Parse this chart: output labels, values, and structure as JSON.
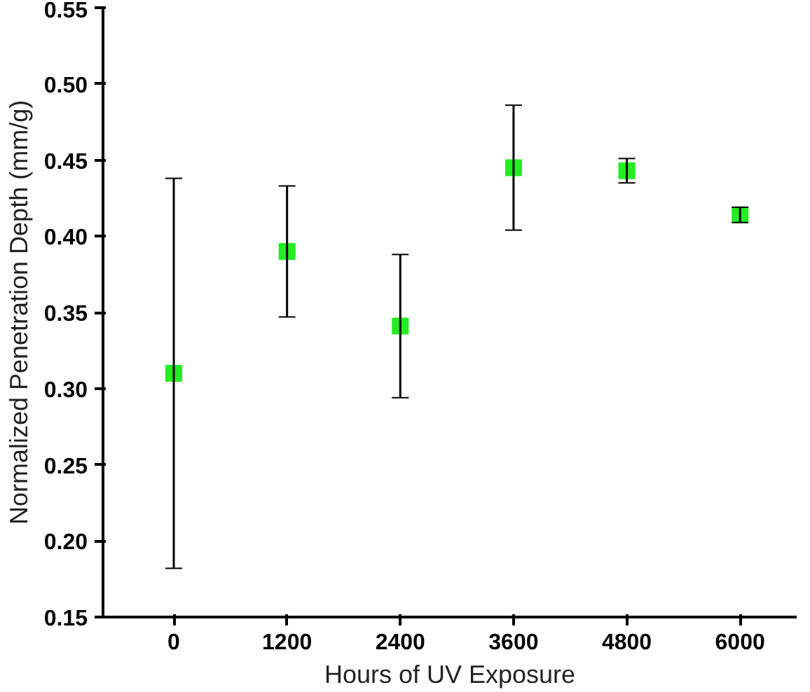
{
  "chart_data": {
    "type": "scatter",
    "xlabel": "Hours of UV Exposure",
    "ylabel": "Normalized Penetration Depth (mm/g)",
    "x": [
      0,
      1200,
      2400,
      3600,
      4800,
      6000
    ],
    "series": [
      {
        "color": "#22ee22",
        "values": [
          0.31,
          0.39,
          0.341,
          0.445,
          0.443,
          0.414
        ],
        "errors": [
          0.128,
          0.043,
          0.047,
          0.041,
          0.008,
          0.005
        ]
      }
    ],
    "xlim": [
      -750,
      6600
    ],
    "xticks": [
      0,
      1200,
      2400,
      3600,
      4800,
      6000
    ],
    "ylim": [
      0.15,
      0.55
    ],
    "yticks": [
      {
        "value": 0.15,
        "label": "0.15"
      },
      {
        "value": 0.2,
        "label": "0.20"
      },
      {
        "value": 0.25,
        "label": "0.25"
      },
      {
        "value": 0.3,
        "label": "0.30"
      },
      {
        "value": 0.35,
        "label": "0.35"
      },
      {
        "value": 0.4,
        "label": "0.40"
      },
      {
        "value": 0.45,
        "label": "0.45"
      },
      {
        "value": 0.5,
        "label": "0.50"
      },
      {
        "value": 0.55,
        "label": "0.55"
      }
    ],
    "marker": "square",
    "grid": false
  }
}
